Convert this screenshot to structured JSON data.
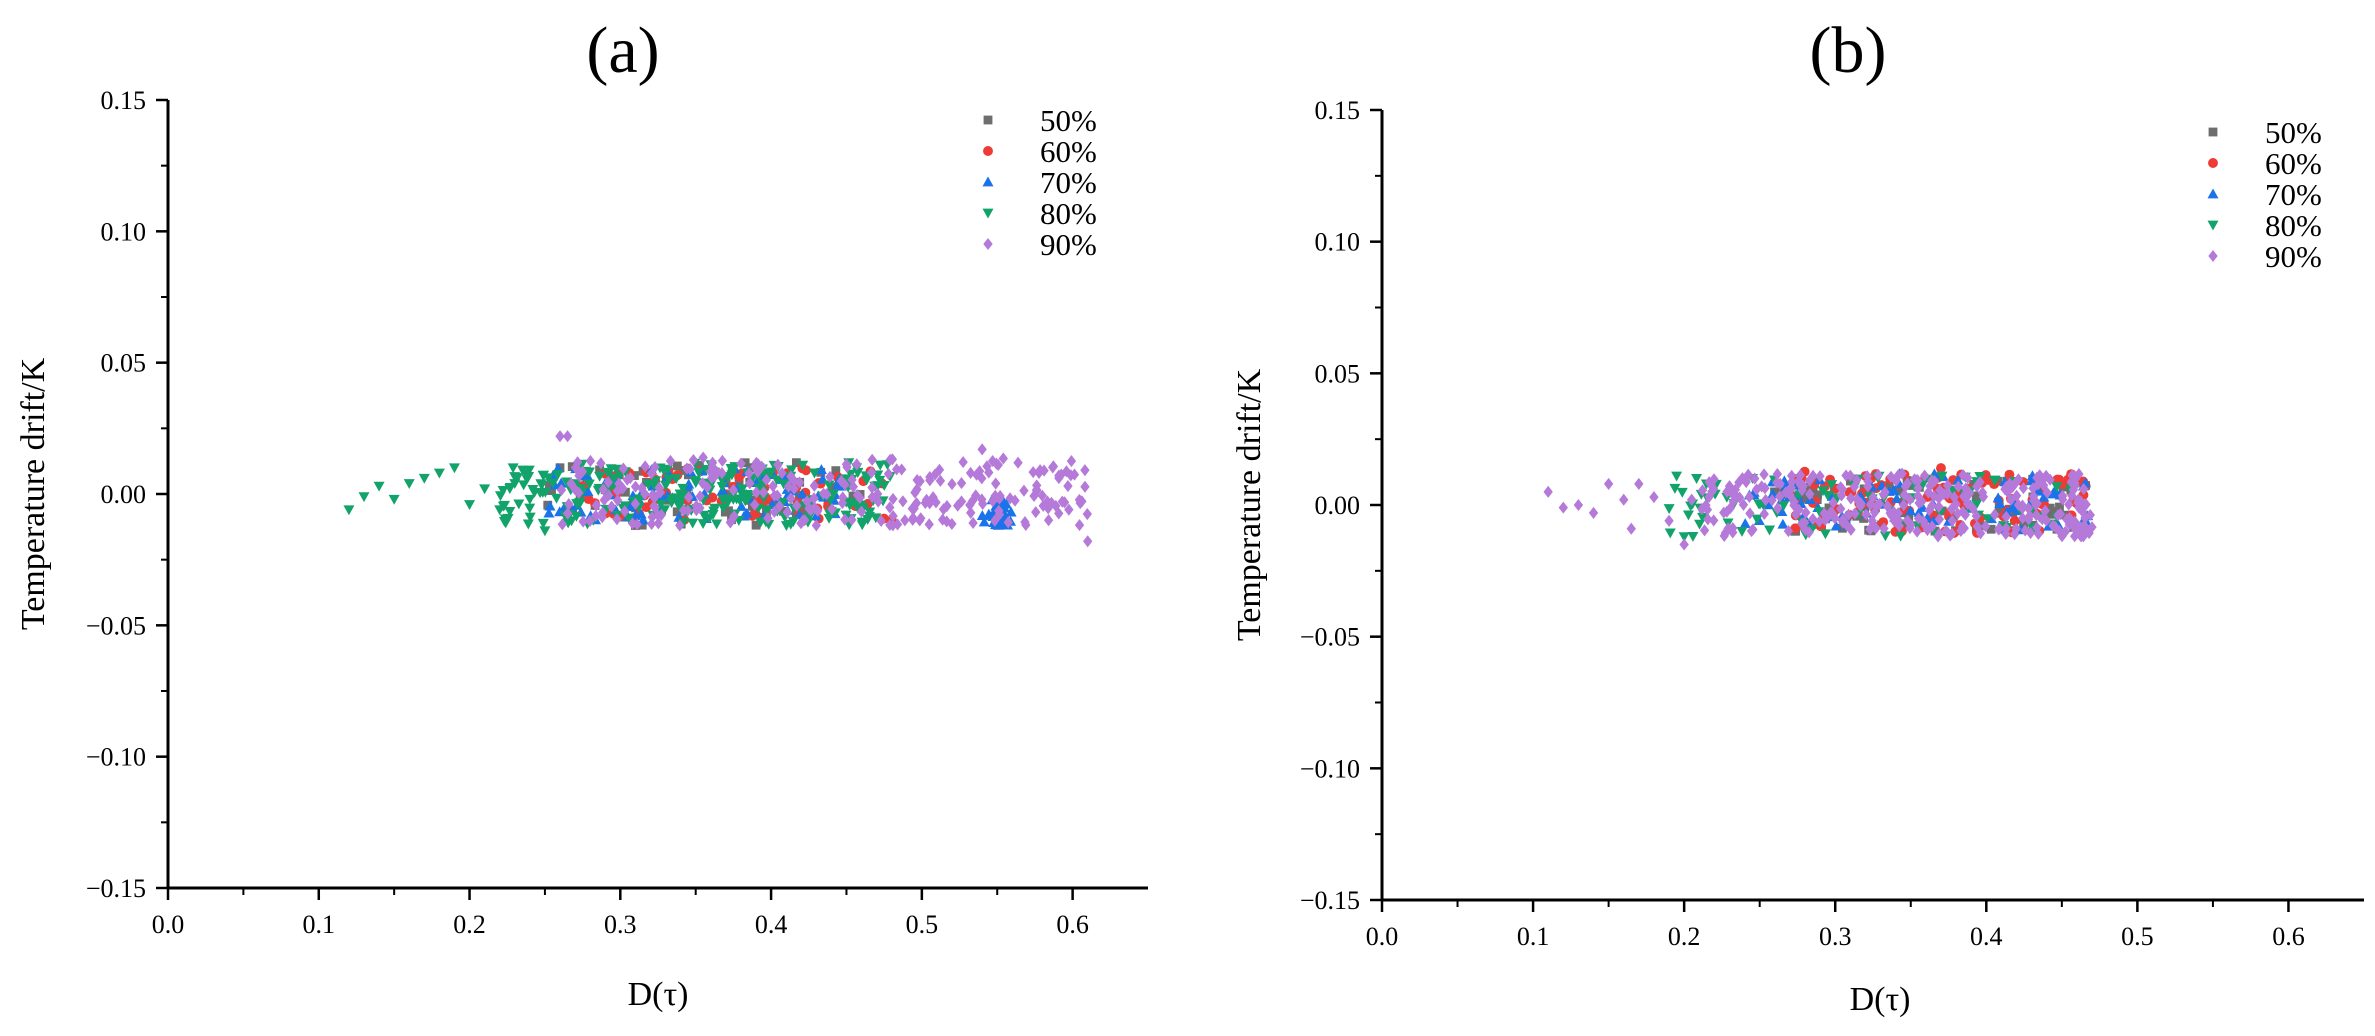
{
  "figure": {
    "series_colors": {
      "50%": "#6e6e6e",
      "60%": "#ef3b36",
      "70%": "#1a73e8",
      "80%": "#12a36b",
      "90%": "#b57ad9"
    }
  },
  "chart_data": [
    {
      "id": "a",
      "type": "scatter",
      "title": "(a)",
      "xlabel": "D(τ)",
      "ylabel": "Temperature drift/K",
      "xlim": [
        0.0,
        0.65
      ],
      "ylim": [
        -0.15,
        0.15
      ],
      "xticks": [
        0.0,
        0.1,
        0.2,
        0.3,
        0.4,
        0.5,
        0.6
      ],
      "yticks": [
        -0.15,
        -0.1,
        -0.05,
        0.0,
        0.05,
        0.1,
        0.15
      ],
      "xtick_labels": [
        "0.0",
        "0.1",
        "0.2",
        "0.3",
        "0.4",
        "0.5",
        "0.6"
      ],
      "ytick_labels": [
        "−0.15",
        "−0.10",
        "−0.05",
        "0.00",
        "0.05",
        "0.10",
        "0.15"
      ],
      "legend": {
        "position": "top-right",
        "entries": [
          "50%",
          "60%",
          "70%",
          "80%",
          "90%"
        ]
      },
      "series": [
        {
          "name": "50%",
          "marker": "square",
          "x_range": [
            0.25,
            0.46
          ],
          "y_range": [
            -0.012,
            0.012
          ],
          "n": 70,
          "extra_points": [
            [
              0.26,
              0.01
            ],
            [
              0.31,
              -0.012
            ]
          ]
        },
        {
          "name": "60%",
          "marker": "circle",
          "x_range": [
            0.27,
            0.48
          ],
          "y_range": [
            -0.01,
            0.01
          ],
          "n": 70,
          "extra_points": [
            [
              0.48,
              -0.01
            ]
          ]
        },
        {
          "name": "70%",
          "marker": "triangle-up",
          "x_range": [
            0.25,
            0.45
          ],
          "y_range": [
            -0.01,
            0.01
          ],
          "n": 90,
          "cluster": {
            "x_range": [
              0.54,
              0.56
            ],
            "y_range": [
              -0.012,
              -0.002
            ],
            "n": 25
          }
        },
        {
          "name": "80%",
          "marker": "triangle-down",
          "x_range": [
            0.22,
            0.48
          ],
          "y_range": [
            -0.012,
            0.012
          ],
          "n": 240,
          "trail": [
            [
              0.12,
              -0.006
            ],
            [
              0.13,
              -0.001
            ],
            [
              0.14,
              0.003
            ],
            [
              0.15,
              -0.002
            ],
            [
              0.16,
              0.004
            ],
            [
              0.17,
              0.006
            ],
            [
              0.18,
              0.008
            ],
            [
              0.19,
              0.01
            ],
            [
              0.2,
              -0.004
            ],
            [
              0.21,
              0.002
            ],
            [
              0.22,
              -0.006
            ],
            [
              0.23,
              0.004
            ],
            [
              0.24,
              -0.002
            ],
            [
              0.25,
              -0.014
            ]
          ]
        },
        {
          "name": "90%",
          "marker": "diamond",
          "x_range": [
            0.26,
            0.61
          ],
          "y_range": [
            -0.012,
            0.014
          ],
          "n": 260,
          "extra_points": [
            [
              0.26,
              0.022
            ],
            [
              0.265,
              0.022
            ],
            [
              0.54,
              0.017
            ],
            [
              0.61,
              -0.018
            ]
          ]
        }
      ]
    },
    {
      "id": "b",
      "type": "scatter",
      "title": "(b)",
      "xlabel": "D(τ)",
      "ylabel": "Temperature drift/K",
      "xlim": [
        0.0,
        0.65
      ],
      "ylim": [
        -0.15,
        0.15
      ],
      "xticks": [
        0.0,
        0.1,
        0.2,
        0.3,
        0.4,
        0.5,
        0.6
      ],
      "yticks": [
        -0.15,
        -0.1,
        -0.05,
        0.0,
        0.05,
        0.1,
        0.15
      ],
      "xtick_labels": [
        "0.0",
        "0.1",
        "0.2",
        "0.3",
        "0.4",
        "0.5",
        "0.6"
      ],
      "ytick_labels": [
        "−0.15",
        "−0.10",
        "−0.05",
        "0.00",
        "0.05",
        "0.10",
        "0.15"
      ],
      "legend": {
        "position": "top-right",
        "entries": [
          "50%",
          "60%",
          "70%",
          "80%",
          "90%"
        ]
      },
      "series": [
        {
          "name": "50%",
          "marker": "square",
          "x_range": [
            0.25,
            0.47
          ],
          "y_range": [
            -0.01,
            0.01
          ],
          "n": 80
        },
        {
          "name": "60%",
          "marker": "circle",
          "x_range": [
            0.27,
            0.47
          ],
          "y_range": [
            -0.011,
            0.013
          ],
          "n": 110,
          "extra_points": [
            [
              0.37,
              0.014
            ],
            [
              0.32,
              0.011
            ]
          ]
        },
        {
          "name": "70%",
          "marker": "triangle-up",
          "x_range": [
            0.24,
            0.47
          ],
          "y_range": [
            -0.01,
            0.012
          ],
          "n": 90
        },
        {
          "name": "80%",
          "marker": "triangle-down",
          "x_range": [
            0.19,
            0.46
          ],
          "y_range": [
            -0.012,
            0.011
          ],
          "n": 90,
          "extra_points": [
            [
              0.195,
              0.011
            ],
            [
              0.2,
              -0.012
            ]
          ]
        },
        {
          "name": "90%",
          "marker": "diamond",
          "x_range": [
            0.21,
            0.47
          ],
          "y_range": [
            -0.012,
            0.012
          ],
          "n": 300,
          "trail": [
            [
              0.11,
              0.005
            ],
            [
              0.12,
              -0.001
            ],
            [
              0.13,
              0.0
            ],
            [
              0.14,
              -0.003
            ],
            [
              0.15,
              0.008
            ],
            [
              0.16,
              0.002
            ],
            [
              0.165,
              -0.009
            ],
            [
              0.17,
              0.008
            ],
            [
              0.18,
              0.003
            ],
            [
              0.19,
              -0.006
            ],
            [
              0.2,
              -0.015
            ],
            [
              0.205,
              0.002
            ]
          ]
        }
      ]
    }
  ]
}
